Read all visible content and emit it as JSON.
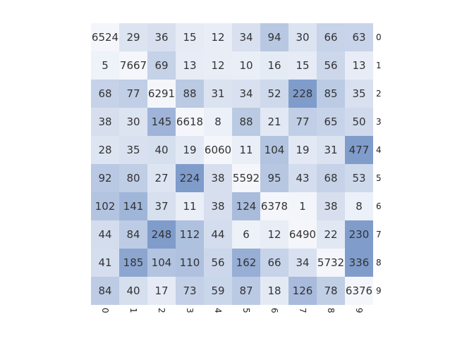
{
  "chart_data": {
    "type": "heatmap",
    "title": "",
    "xlabel": "",
    "ylabel": "",
    "x_labels": [
      "0",
      "1",
      "2",
      "3",
      "4",
      "5",
      "6",
      "7",
      "8",
      "9"
    ],
    "y_labels": [
      "0",
      "1",
      "2",
      "3",
      "4",
      "5",
      "6",
      "7",
      "8",
      "9"
    ],
    "values": [
      [
        6524,
        29,
        36,
        15,
        12,
        34,
        94,
        30,
        66,
        63
      ],
      [
        5,
        7667,
        69,
        13,
        12,
        10,
        16,
        15,
        56,
        13
      ],
      [
        68,
        77,
        6291,
        88,
        31,
        34,
        52,
        228,
        85,
        35
      ],
      [
        38,
        30,
        145,
        6618,
        8,
        88,
        21,
        77,
        65,
        50
      ],
      [
        28,
        35,
        40,
        19,
        6060,
        11,
        104,
        19,
        31,
        477
      ],
      [
        92,
        80,
        27,
        224,
        38,
        5592,
        95,
        43,
        68,
        53
      ],
      [
        102,
        141,
        37,
        11,
        38,
        124,
        6378,
        1,
        38,
        8
      ],
      [
        44,
        84,
        248,
        112,
        44,
        6,
        12,
        6490,
        22,
        230
      ],
      [
        41,
        185,
        104,
        110,
        56,
        162,
        66,
        34,
        5732,
        336
      ],
      [
        84,
        40,
        17,
        73,
        59,
        87,
        18,
        126,
        78,
        6376
      ]
    ],
    "x_tick_rotation": 90,
    "y_ticks_side": "right",
    "colorbar": false,
    "grid": false,
    "color_scale": {
      "low": "#f4f6fb",
      "high": "#7f9ccb",
      "diagonal": "#f4f6fb",
      "text": "#333333",
      "note": "off-diagonal cells shaded relative to off-diagonal max; diagonal cells rendered light"
    }
  }
}
